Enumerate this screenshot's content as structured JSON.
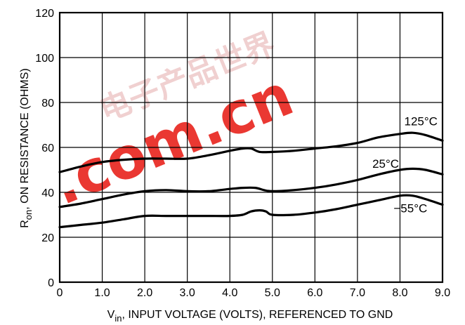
{
  "chart_data": {
    "type": "line",
    "title": "",
    "xlabel": {
      "symbol": "V",
      "subscript": "in",
      "rest": ", INPUT VOLTAGE (VOLTS), REFERENCED TO GND"
    },
    "ylabel": {
      "symbol": "R",
      "subscript": "on",
      "rest": ", ON RESISTANCE (OHMS)"
    },
    "xlim": [
      0,
      9
    ],
    "ylim": [
      0,
      120
    ],
    "x_ticks": [
      "0",
      "1.0",
      "2.0",
      "3.0",
      "4.0",
      "5.0",
      "6.0",
      "7.0",
      "8.0",
      "9.0"
    ],
    "y_ticks": [
      "0",
      "20",
      "40",
      "60",
      "80",
      "100",
      "120"
    ],
    "grid": true,
    "series": [
      {
        "name": "125°C",
        "x": [
          0,
          0.5,
          1.0,
          1.5,
          2.0,
          2.5,
          3.0,
          3.5,
          4.0,
          4.3,
          4.5,
          4.7,
          5.0,
          5.5,
          6.0,
          6.5,
          7.0,
          7.5,
          8.0,
          8.3,
          8.6,
          9.0
        ],
        "y": [
          49,
          51.5,
          53.5,
          54.5,
          55,
          55,
          55,
          56.5,
          58.5,
          59.5,
          59.5,
          58,
          58,
          58.5,
          59.5,
          60.5,
          62,
          64.5,
          66,
          66.5,
          65.5,
          63
        ]
      },
      {
        "name": "25°C",
        "x": [
          0,
          0.5,
          1.0,
          1.5,
          2.0,
          2.5,
          3.0,
          3.5,
          4.0,
          4.3,
          4.6,
          4.8,
          5.0,
          5.5,
          6.0,
          6.5,
          7.0,
          7.5,
          8.0,
          8.3,
          8.6,
          9.0
        ],
        "y": [
          33.5,
          35,
          37,
          39,
          40.5,
          41,
          40.5,
          40.5,
          41.5,
          42,
          42,
          41,
          40.5,
          41,
          42,
          43.5,
          45.5,
          48,
          50,
          50.5,
          50,
          48
        ]
      },
      {
        "name": "−55°C",
        "x": [
          0,
          0.5,
          1.0,
          1.5,
          2.0,
          2.5,
          3.0,
          3.5,
          4.0,
          4.3,
          4.5,
          4.7,
          4.85,
          5.0,
          5.5,
          6.0,
          6.5,
          7.0,
          7.5,
          8.0,
          8.3,
          8.6,
          9.0
        ],
        "y": [
          24.5,
          25.5,
          26.5,
          28,
          29.5,
          29.5,
          29.5,
          29.5,
          29.5,
          30,
          31.5,
          32,
          31.5,
          30,
          30,
          31,
          32.5,
          34.5,
          36.5,
          38.5,
          38.5,
          37,
          34.5
        ]
      }
    ],
    "annotations": [
      "125°C",
      "25°C",
      "−55°C"
    ]
  },
  "watermark": {
    "text": ".com.cn",
    "chinese": "电子产品世界",
    "color": "#e8231c"
  }
}
